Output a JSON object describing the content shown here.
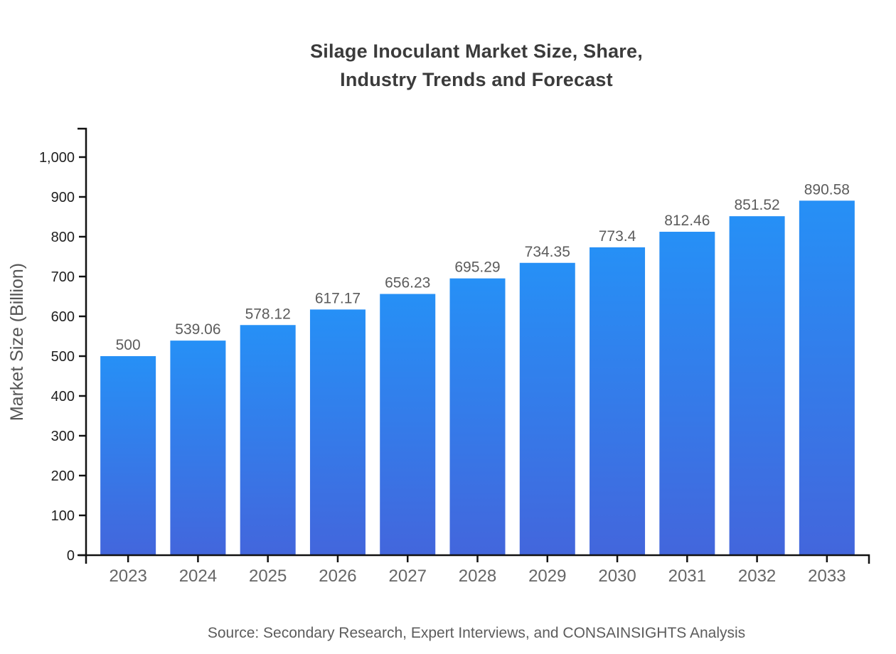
{
  "chart_data": {
    "type": "bar",
    "title": "Silage Inoculant Market Size, Share, Industry Trends and Forecast",
    "title_lines": [
      "Silage Inoculant Market Size, Share,",
      "Industry Trends and Forecast"
    ],
    "categories": [
      "2023",
      "2024",
      "2025",
      "2026",
      "2027",
      "2028",
      "2029",
      "2030",
      "2031",
      "2032",
      "2033"
    ],
    "values": [
      500,
      539.06,
      578.12,
      617.17,
      656.23,
      695.29,
      734.35,
      773.4,
      812.46,
      851.52,
      890.58
    ],
    "value_labels": [
      "500",
      "539.06",
      "578.12",
      "617.17",
      "656.23",
      "695.29",
      "734.35",
      "773.4",
      "812.46",
      "851.52",
      "890.58"
    ],
    "xlabel": "",
    "ylabel": "Market Size (Billion)",
    "ylim": [
      0,
      1000
    ],
    "ytick_step": 100,
    "ytick_labels": [
      "0",
      "100",
      "200",
      "300",
      "400",
      "500",
      "600",
      "700",
      "800",
      "900",
      "1,000"
    ],
    "grid": false,
    "legend": false,
    "source": "Source: Secondary Research, Expert Interviews, and CONSAINSIGHTS Analysis",
    "colors": {
      "bar_gradient_top": "#2690F6",
      "bar_gradient_bottom": "#4366DC",
      "axis_line": "#111111",
      "y_tick_label": "#1f1f1f",
      "x_tick_label": "#666666",
      "value_label": "#5c5c5c",
      "title": "#3b3b3b",
      "ylabel": "#555555",
      "source": "#5c5c5c"
    }
  }
}
